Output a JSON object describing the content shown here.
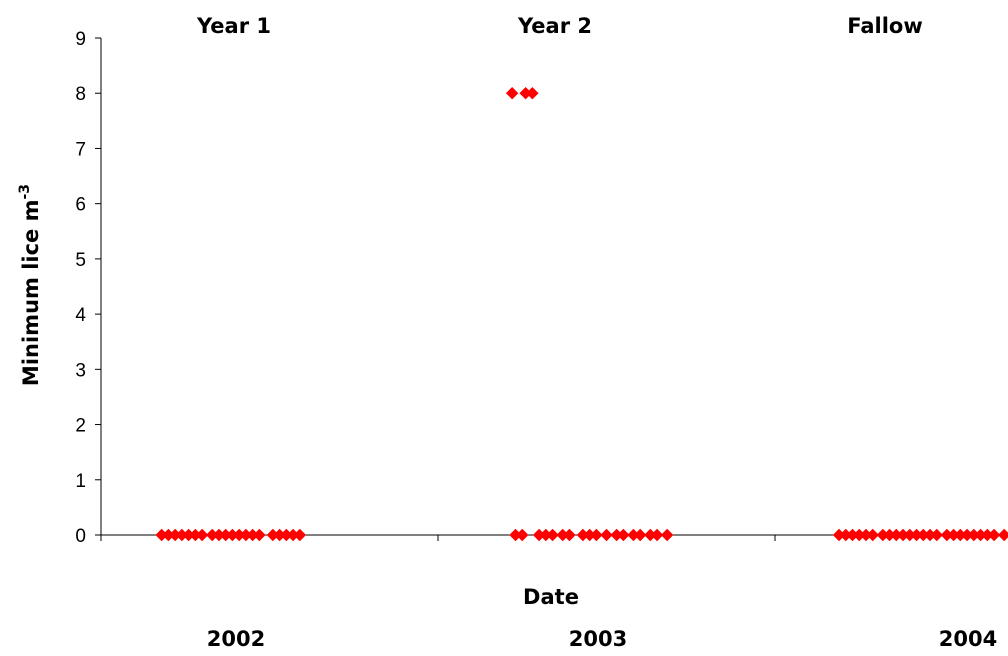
{
  "chart_data": {
    "type": "scatter",
    "ylabel": "Minimum lice m",
    "ylabel_sup": "-3",
    "xlabel": "Date",
    "ylim": [
      0,
      9
    ],
    "yticks": [
      "0",
      "1",
      "2",
      "3",
      "4",
      "5",
      "6",
      "7",
      "8",
      "9"
    ],
    "grid": false,
    "marker_color": "#ff0000",
    "marker_shape": "diamond",
    "sections": [
      {
        "label": "Year 1",
        "year": "2002"
      },
      {
        "label": "Year 2",
        "year": "2003"
      },
      {
        "label": "Fallow",
        "year": "2004"
      }
    ],
    "series": [
      {
        "points": [
          {
            "x": 0.18,
            "y": 0
          },
          {
            "x": 0.2,
            "y": 0
          },
          {
            "x": 0.22,
            "y": 0
          },
          {
            "x": 0.24,
            "y": 0
          },
          {
            "x": 0.26,
            "y": 0
          },
          {
            "x": 0.28,
            "y": 0
          },
          {
            "x": 0.3,
            "y": 0
          },
          {
            "x": 0.33,
            "y": 0
          },
          {
            "x": 0.35,
            "y": 0
          },
          {
            "x": 0.37,
            "y": 0
          },
          {
            "x": 0.39,
            "y": 0
          },
          {
            "x": 0.41,
            "y": 0
          },
          {
            "x": 0.43,
            "y": 0
          },
          {
            "x": 0.45,
            "y": 0
          },
          {
            "x": 0.47,
            "y": 0
          },
          {
            "x": 0.51,
            "y": 0
          },
          {
            "x": 0.53,
            "y": 0
          },
          {
            "x": 0.55,
            "y": 0
          },
          {
            "x": 0.57,
            "y": 0
          },
          {
            "x": 0.59,
            "y": 0
          },
          {
            "x": 1.22,
            "y": 8
          },
          {
            "x": 1.26,
            "y": 8
          },
          {
            "x": 1.28,
            "y": 8
          },
          {
            "x": 1.23,
            "y": 0
          },
          {
            "x": 1.25,
            "y": 0
          },
          {
            "x": 1.3,
            "y": 0
          },
          {
            "x": 1.32,
            "y": 0
          },
          {
            "x": 1.34,
            "y": 0
          },
          {
            "x": 1.37,
            "y": 0
          },
          {
            "x": 1.39,
            "y": 0
          },
          {
            "x": 1.43,
            "y": 0
          },
          {
            "x": 1.45,
            "y": 0
          },
          {
            "x": 1.47,
            "y": 0
          },
          {
            "x": 1.5,
            "y": 0
          },
          {
            "x": 1.53,
            "y": 0
          },
          {
            "x": 1.55,
            "y": 0
          },
          {
            "x": 1.58,
            "y": 0
          },
          {
            "x": 1.6,
            "y": 0
          },
          {
            "x": 1.63,
            "y": 0
          },
          {
            "x": 1.65,
            "y": 0
          },
          {
            "x": 1.68,
            "y": 0
          },
          {
            "x": 2.19,
            "y": 0
          },
          {
            "x": 2.21,
            "y": 0
          },
          {
            "x": 2.23,
            "y": 0
          },
          {
            "x": 2.25,
            "y": 0
          },
          {
            "x": 2.27,
            "y": 0
          },
          {
            "x": 2.29,
            "y": 0
          },
          {
            "x": 2.32,
            "y": 0
          },
          {
            "x": 2.34,
            "y": 0
          },
          {
            "x": 2.36,
            "y": 0
          },
          {
            "x": 2.38,
            "y": 0
          },
          {
            "x": 2.4,
            "y": 0
          },
          {
            "x": 2.42,
            "y": 0
          },
          {
            "x": 2.44,
            "y": 0
          },
          {
            "x": 2.46,
            "y": 0
          },
          {
            "x": 2.48,
            "y": 0
          },
          {
            "x": 2.51,
            "y": 0
          },
          {
            "x": 2.53,
            "y": 0
          },
          {
            "x": 2.55,
            "y": 0
          },
          {
            "x": 2.57,
            "y": 0
          },
          {
            "x": 2.59,
            "y": 0
          },
          {
            "x": 2.61,
            "y": 0
          },
          {
            "x": 2.63,
            "y": 0
          },
          {
            "x": 2.65,
            "y": 0
          },
          {
            "x": 2.68,
            "y": 0
          }
        ]
      }
    ]
  }
}
